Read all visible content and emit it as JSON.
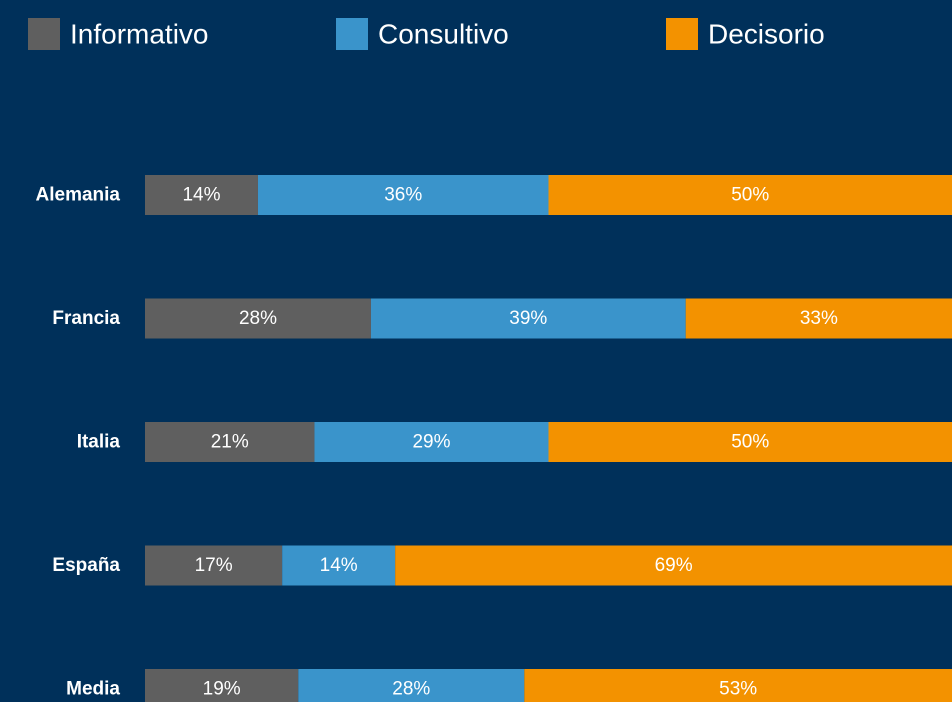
{
  "chart_data": {
    "type": "stacked_barh",
    "categories": [
      "Alemania",
      "Francia",
      "Italia",
      "España",
      "Media"
    ],
    "series": [
      {
        "name": "Informativo",
        "color": "#5f5f5f",
        "values": [
          14,
          28,
          21,
          17,
          19
        ],
        "value_labels": [
          "14%",
          "28%",
          "21%",
          "17%",
          "19%"
        ]
      },
      {
        "name": "Consultivo",
        "color": "#3a94cb",
        "values": [
          36,
          39,
          29,
          14,
          28
        ],
        "value_labels": [
          "36%",
          "39%",
          "29%",
          "14%",
          "28%"
        ]
      },
      {
        "name": "Decisorio",
        "color": "#f39200",
        "values": [
          50,
          33,
          50,
          69,
          53
        ],
        "value_labels": [
          "50%",
          "33%",
          "50%",
          "69%",
          "53%"
        ]
      }
    ],
    "xlim": [
      0,
      100
    ],
    "background": "#00305a"
  }
}
